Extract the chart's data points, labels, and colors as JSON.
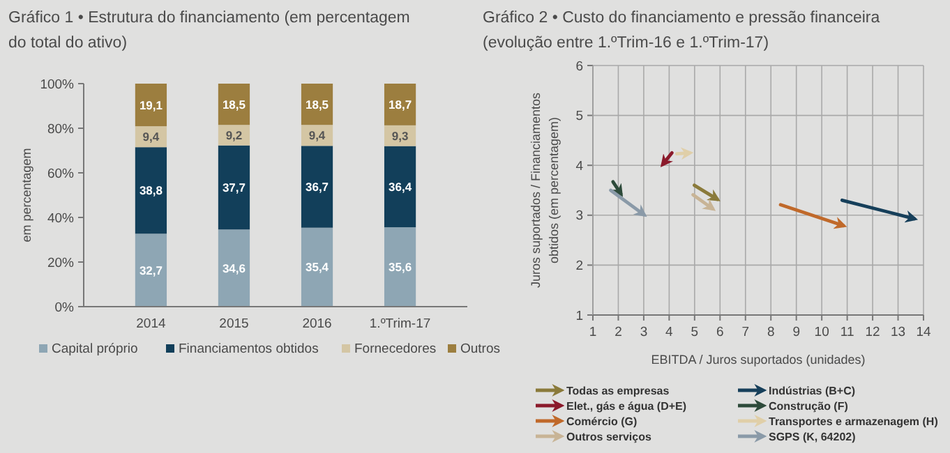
{
  "chart_data": [
    {
      "type": "bar",
      "title": "Gráfico 1 • Estrutura do financiamento (em percentagem do total do ativo)",
      "ylabel": "em percentagem",
      "categories": [
        "2014",
        "2015",
        "2016",
        "1.ºTrim-17"
      ],
      "stacked": true,
      "legend": "bottom",
      "ylim": [
        0,
        100
      ],
      "yticks": [
        {
          "value": 0,
          "label": "0%"
        },
        {
          "value": 20,
          "label": "20%"
        },
        {
          "value": 40,
          "label": "40%"
        },
        {
          "value": 60,
          "label": "60%"
        },
        {
          "value": 80,
          "label": "80%"
        },
        {
          "value": 100,
          "label": "100%"
        }
      ],
      "series": [
        {
          "name": "Capital próprio",
          "color": "#8ea6b4",
          "values": [
            32.7,
            34.6,
            35.4,
            35.6
          ],
          "value_labels": [
            "32,7",
            "34,6",
            "35,4",
            "35,6"
          ]
        },
        {
          "name": "Financiamentos obtidos",
          "color": "#123f5a",
          "values": [
            38.8,
            37.7,
            36.7,
            36.4
          ],
          "value_labels": [
            "38,8",
            "37,7",
            "36,7",
            "36,4"
          ]
        },
        {
          "name": "Fornecedores",
          "color": "#d4c6a4",
          "values": [
            9.4,
            9.2,
            9.4,
            9.3
          ],
          "value_labels": [
            "9,4",
            "9,2",
            "9,4",
            "9,3"
          ]
        },
        {
          "name": "Outros",
          "color": "#9c7e3f",
          "values": [
            19.1,
            18.5,
            18.5,
            18.7
          ],
          "value_labels": [
            "19,1",
            "18,5",
            "18,5",
            "18,7"
          ]
        }
      ]
    },
    {
      "type": "line",
      "title": "Gráfico 2 • Custo do financiamento e pressão financeira (evolução entre 1.ºTrim-16 e 1.ºTrim-17)",
      "xlabel": "EBITDA / Juros suportados (unidades)",
      "ylabel": "Juros suportados / Financiamentos obtidos (em percentagem)",
      "grid": true,
      "legend": "bottom",
      "xlim": [
        1,
        14
      ],
      "xticks": [
        1,
        2,
        3,
        4,
        5,
        6,
        7,
        8,
        9,
        10,
        11,
        12,
        13,
        14
      ],
      "ylim": [
        1,
        6
      ],
      "yticks": [
        1,
        2,
        3,
        4,
        5,
        6
      ],
      "series": [
        {
          "name": "Todas as empresas",
          "color": "#8a7a3a",
          "x": [
            4.99,
            5.89
          ],
          "values": [
            3.6,
            3.32
          ]
        },
        {
          "name": "Elet., gás e água (D+E)",
          "color": "#8b1a2b",
          "x": [
            4.11,
            3.75
          ],
          "values": [
            4.25,
            4.02
          ]
        },
        {
          "name": "Comércio (G)",
          "color": "#c0692a",
          "x": [
            8.38,
            10.85
          ],
          "values": [
            3.21,
            2.79
          ]
        },
        {
          "name": "Outros serviços",
          "color": "#c8b496",
          "x": [
            4.94,
            5.71
          ],
          "values": [
            3.41,
            3.13
          ]
        },
        {
          "name": "Indústrias (B+C)",
          "color": "#163f5a",
          "x": [
            10.8,
            13.64
          ],
          "values": [
            3.3,
            2.93
          ]
        },
        {
          "name": "Construção (F)",
          "color": "#2d4a3a",
          "x": [
            1.79,
            2.1
          ],
          "values": [
            3.67,
            3.43
          ]
        },
        {
          "name": "Transportes e armazenagem (H)",
          "color": "#e0cfa8",
          "x": [
            4.3,
            4.81
          ],
          "values": [
            4.23,
            4.25
          ]
        },
        {
          "name": "SGPS (K, 64202)",
          "color": "#8a9aa8",
          "x": [
            1.7,
            3.01
          ],
          "values": [
            3.5,
            3.01
          ]
        }
      ]
    }
  ]
}
